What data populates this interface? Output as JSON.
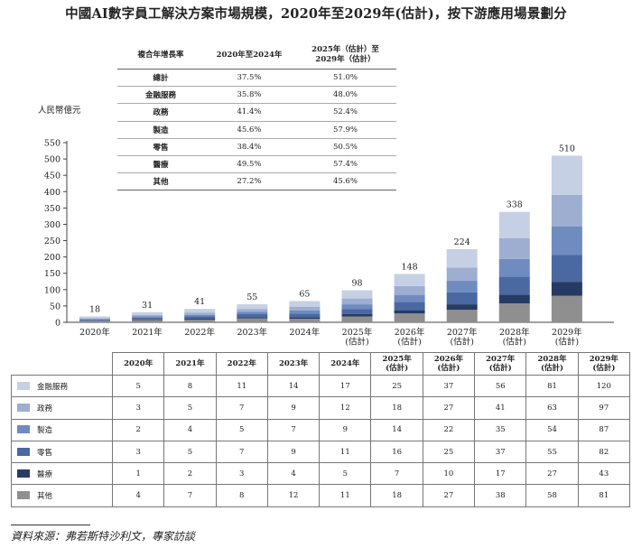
{
  "title": "中國AI數字員工解決方案市場規模，2020年至2029年(估計)，按下游應用場景劃分",
  "colors": {
    "finance": "#c5d0e4",
    "government": "#9daed0",
    "manufacturing": "#6f8bc0",
    "retail": "#4a68a2",
    "medical": "#263b63",
    "other": "#8f8f8f"
  },
  "cagr_table": {
    "header": [
      "複合年增長率",
      "2020年至2024年",
      "2025年（估計）至\n2029年（估計）"
    ],
    "rows": [
      [
        "總計",
        "37.5%",
        "51.0%"
      ],
      [
        "金融服務",
        "35.8%",
        "48.0%"
      ],
      [
        "政務",
        "41.4%",
        "52.4%"
      ],
      [
        "製造",
        "45.6%",
        "57.9%"
      ],
      [
        "零售",
        "38.4%",
        "50.5%"
      ],
      [
        "醫療",
        "49.5%",
        "57.4%"
      ],
      [
        "其他",
        "27.2%",
        "45.6%"
      ]
    ]
  },
  "data_table": {
    "headers": [
      "2020年",
      "2021年",
      "2022年",
      "2023年",
      "2024年",
      "2025年\n(估計)",
      "2026年\n(估計)",
      "2027年\n(估計)",
      "2028年\n(估計)",
      "2029年\n(估計)"
    ]
  },
  "source": "資料來源：弗若斯特沙利文，專家訪談",
  "chart_data": {
    "type": "bar",
    "stacked": true,
    "ylabel": "人民幣億元",
    "ylim": [
      0,
      550
    ],
    "yticks": [
      0,
      50,
      100,
      150,
      200,
      250,
      300,
      350,
      400,
      450,
      500,
      550
    ],
    "categories": [
      "2020年",
      "2021年",
      "2022年",
      "2023年",
      "2024年",
      "2025年\n(估計)",
      "2026年\n(估計)",
      "2027年\n(估計)",
      "2028年\n(估計)",
      "2029年\n(估計)"
    ],
    "totals": [
      18,
      31,
      41,
      55,
      65,
      98,
      148,
      224,
      338,
      510
    ],
    "series": [
      {
        "key": "other",
        "name": "其他",
        "values": [
          4,
          7,
          8,
          12,
          11,
          18,
          27,
          38,
          58,
          81
        ]
      },
      {
        "key": "medical",
        "name": "醫療",
        "values": [
          1,
          2,
          3,
          4,
          5,
          7,
          10,
          17,
          27,
          43
        ]
      },
      {
        "key": "retail",
        "name": "零售",
        "values": [
          3,
          5,
          7,
          9,
          11,
          16,
          25,
          37,
          55,
          82
        ]
      },
      {
        "key": "manufacturing",
        "name": "製造",
        "values": [
          2,
          4,
          5,
          7,
          9,
          14,
          22,
          35,
          54,
          87
        ]
      },
      {
        "key": "government",
        "name": "政務",
        "values": [
          3,
          5,
          7,
          9,
          12,
          18,
          27,
          41,
          63,
          97
        ]
      },
      {
        "key": "finance",
        "name": "金融服務",
        "values": [
          5,
          8,
          11,
          14,
          17,
          25,
          37,
          56,
          81,
          120
        ]
      }
    ]
  }
}
